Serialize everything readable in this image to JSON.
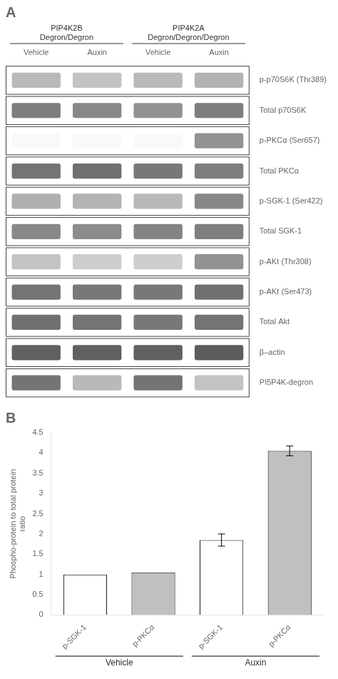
{
  "chart_data": [
    {
      "type": "heatmap",
      "title": "A",
      "x": [
        "Vehicle",
        "Auxin",
        "Vehicle",
        "Auxin"
      ],
      "y": [
        "p-p70S6K (Thr389)",
        "Total p70S6K",
        "p-PKCα (Ser657)",
        "Total PKCα",
        "p-SGK-1 (Ser422)",
        "Total SGK-1",
        "p-AKt (Thr308)",
        "p-AKt (Ser473)",
        "Total Akt",
        "β–actin",
        "PI5P4K-degron"
      ],
      "cells": [
        [
          0.35,
          0.3,
          0.35,
          0.38
        ],
        [
          0.65,
          0.6,
          0.55,
          0.65
        ],
        [
          0.03,
          0.03,
          0.03,
          0.55
        ],
        [
          0.7,
          0.72,
          0.68,
          0.65
        ],
        [
          0.4,
          0.38,
          0.35,
          0.6
        ],
        [
          0.6,
          0.58,
          0.62,
          0.65
        ],
        [
          0.3,
          0.25,
          0.25,
          0.55
        ],
        [
          0.7,
          0.68,
          0.68,
          0.72
        ],
        [
          0.72,
          0.7,
          0.68,
          0.7
        ],
        [
          0.8,
          0.8,
          0.8,
          0.82
        ],
        [
          0.7,
          0.35,
          0.7,
          0.3
        ]
      ],
      "annotations": [
        "PIP4K2B\nDegron/Degron",
        "PIP4K2A\nDegron/Degron/Degron"
      ],
      "grid": false
    },
    {
      "type": "bar",
      "title": "B",
      "categories": [
        "p-SGK-1",
        "p-PKCα",
        "p-SGK-1",
        "p-PKCα"
      ],
      "values": [
        1.0,
        1.05,
        1.85,
        4.05
      ],
      "errors": [
        0.0,
        0.0,
        0.15,
        0.12
      ],
      "colors": [
        "white",
        "#c0c0c0",
        "white",
        "#c0c0c0"
      ],
      "ylabel": "Phospho-protein to total protein\nratio",
      "ylim": [
        0,
        4.5
      ],
      "yticks": [
        0,
        0.5,
        1,
        1.5,
        2,
        2.5,
        3,
        3.5,
        4,
        4.5
      ],
      "annotations": [
        "Vehicle",
        "Auxin"
      ],
      "grid": false
    }
  ]
}
